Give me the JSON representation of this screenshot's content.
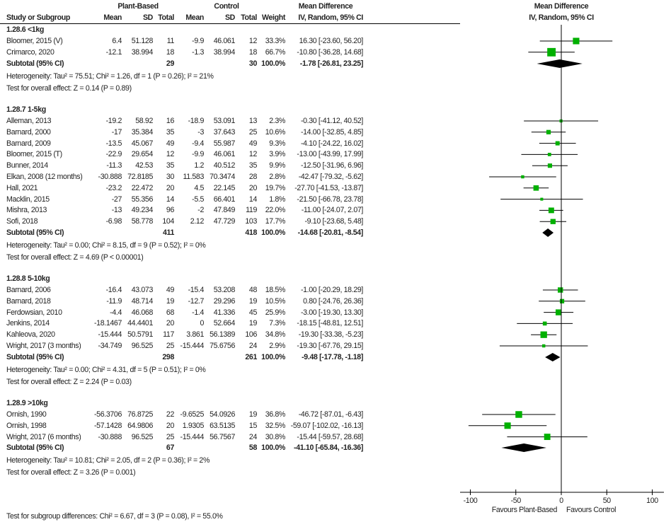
{
  "chart_data": {
    "type": "forest",
    "headers": {
      "study": "Study or Subgroup",
      "group1": "Plant-Based",
      "group2": "Control",
      "mean": "Mean",
      "sd": "SD",
      "total": "Total",
      "weight": "Weight",
      "effect_title": "Mean Difference",
      "effect_method": "IV, Random, 95% CI",
      "plot_title": "Mean Difference",
      "plot_method": "IV, Random, 95% CI"
    },
    "xlim": [
      -100,
      100
    ],
    "ticks": [
      "-100",
      "-50",
      "0",
      "50",
      "100"
    ],
    "xlabel_left": "Favours Plant-Based",
    "xlabel_right": "Favours Control",
    "colors": {
      "study_marker": "#00b000",
      "diamond": "#000000",
      "lines": "#000000"
    },
    "groups": [
      {
        "title": "1.28.6 <1kg",
        "studies": [
          {
            "name": "Bloomer, 2015 (V)",
            "pb_mean": "6.4",
            "pb_sd": "51.128",
            "pb_total": "11",
            "c_mean": "-9.9",
            "c_sd": "46.061",
            "c_total": "12",
            "weight": "33.3%",
            "ci": "16.30 [-23.60, 56.20]"
          },
          {
            "name": "Crimarco, 2020",
            "pb_mean": "-12.1",
            "pb_sd": "38.994",
            "pb_total": "18",
            "c_mean": "-1.3",
            "c_sd": "38.994",
            "c_total": "18",
            "weight": "66.7%",
            "ci": "-10.80 [-36.28, 14.68]"
          }
        ],
        "subtotal": {
          "label": "Subtotal (95% CI)",
          "pb_total": "29",
          "c_total": "30",
          "weight": "100.0%",
          "ci": "-1.78 [-26.81, 23.25]"
        },
        "heterogeneity": "Heterogeneity: Tau² = 75.51; Chi² = 1.26, df = 1 (P = 0.26); I² = 21%",
        "overall_effect": "Test for overall effect: Z = 0.14 (P = 0.89)"
      },
      {
        "title": "1.28.7 1-5kg",
        "studies": [
          {
            "name": "Alleman, 2013",
            "pb_mean": "-19.2",
            "pb_sd": "58.92",
            "pb_total": "16",
            "c_mean": "-18.9",
            "c_sd": "53.091",
            "c_total": "13",
            "weight": "2.3%",
            "ci": "-0.30 [-41.12, 40.52]"
          },
          {
            "name": "Barnard, 2000",
            "pb_mean": "-17",
            "pb_sd": "35.384",
            "pb_total": "35",
            "c_mean": "-3",
            "c_sd": "37.643",
            "c_total": "25",
            "weight": "10.6%",
            "ci": "-14.00 [-32.85, 4.85]"
          },
          {
            "name": "Barnard, 2009",
            "pb_mean": "-13.5",
            "pb_sd": "45.067",
            "pb_total": "49",
            "c_mean": "-9.4",
            "c_sd": "55.987",
            "c_total": "49",
            "weight": "9.3%",
            "ci": "-4.10 [-24.22, 16.02]"
          },
          {
            "name": "Bloomer, 2015 (T)",
            "pb_mean": "-22.9",
            "pb_sd": "29.654",
            "pb_total": "12",
            "c_mean": "-9.9",
            "c_sd": "46.061",
            "c_total": "12",
            "weight": "3.9%",
            "ci": "-13.00 [-43.99, 17.99]"
          },
          {
            "name": "Bunner, 2014",
            "pb_mean": "-11.3",
            "pb_sd": "42.53",
            "pb_total": "35",
            "c_mean": "1.2",
            "c_sd": "40.512",
            "c_total": "35",
            "weight": "9.9%",
            "ci": "-12.50 [-31.96, 6.96]"
          },
          {
            "name": "Elkan, 2008 (12 months)",
            "pb_mean": "-30.888",
            "pb_sd": "72.8185",
            "pb_total": "30",
            "c_mean": "11.583",
            "c_sd": "70.3474",
            "c_total": "28",
            "weight": "2.8%",
            "ci": "-42.47 [-79.32, -5.62]"
          },
          {
            "name": "Hall, 2021",
            "pb_mean": "-23.2",
            "pb_sd": "22.472",
            "pb_total": "20",
            "c_mean": "4.5",
            "c_sd": "22.145",
            "c_total": "20",
            "weight": "19.7%",
            "ci": "-27.70 [-41.53, -13.87]"
          },
          {
            "name": "Macklin, 2015",
            "pb_mean": "-27",
            "pb_sd": "55.356",
            "pb_total": "14",
            "c_mean": "-5.5",
            "c_sd": "66.401",
            "c_total": "14",
            "weight": "1.8%",
            "ci": "-21.50 [-66.78, 23.78]"
          },
          {
            "name": "Mishra, 2013",
            "pb_mean": "-13",
            "pb_sd": "49.234",
            "pb_total": "96",
            "c_mean": "-2",
            "c_sd": "47.849",
            "c_total": "119",
            "weight": "22.0%",
            "ci": "-11.00 [-24.07, 2.07]"
          },
          {
            "name": "Sofi, 2018",
            "pb_mean": "-6.98",
            "pb_sd": "58.778",
            "pb_total": "104",
            "c_mean": "2.12",
            "c_sd": "47.729",
            "c_total": "103",
            "weight": "17.7%",
            "ci": "-9.10 [-23.68, 5.48]"
          }
        ],
        "subtotal": {
          "label": "Subtotal (95% CI)",
          "pb_total": "411",
          "c_total": "418",
          "weight": "100.0%",
          "ci": "-14.68 [-20.81, -8.54]"
        },
        "heterogeneity": "Heterogeneity: Tau² = 0.00; Chi² = 8.15, df = 9 (P = 0.52); I² = 0%",
        "overall_effect": "Test for overall effect: Z = 4.69 (P < 0.00001)"
      },
      {
        "title": "1.28.8 5-10kg",
        "studies": [
          {
            "name": "Barnard, 2006",
            "pb_mean": "-16.4",
            "pb_sd": "43.073",
            "pb_total": "49",
            "c_mean": "-15.4",
            "c_sd": "53.208",
            "c_total": "48",
            "weight": "18.5%",
            "ci": "-1.00 [-20.29, 18.29]"
          },
          {
            "name": "Barnard, 2018",
            "pb_mean": "-11.9",
            "pb_sd": "48.714",
            "pb_total": "19",
            "c_mean": "-12.7",
            "c_sd": "29.296",
            "c_total": "19",
            "weight": "10.5%",
            "ci": "0.80 [-24.76, 26.36]"
          },
          {
            "name": "Ferdowsian, 2010",
            "pb_mean": "-4.4",
            "pb_sd": "46.068",
            "pb_total": "68",
            "c_mean": "-1.4",
            "c_sd": "41.336",
            "c_total": "45",
            "weight": "25.9%",
            "ci": "-3.00 [-19.30, 13.30]"
          },
          {
            "name": "Jenkins, 2014",
            "pb_mean": "-18.1467",
            "pb_sd": "44.4401",
            "pb_total": "20",
            "c_mean": "0",
            "c_sd": "52.664",
            "c_total": "19",
            "weight": "7.3%",
            "ci": "-18.15 [-48.81, 12.51]"
          },
          {
            "name": "Kahleova, 2020",
            "pb_mean": "-15.444",
            "pb_sd": "50.5791",
            "pb_total": "117",
            "c_mean": "3.861",
            "c_sd": "56.1389",
            "c_total": "106",
            "weight": "34.8%",
            "ci": "-19.30 [-33.38, -5.23]"
          },
          {
            "name": "Wright, 2017 (3 months)",
            "pb_mean": "-34.749",
            "pb_sd": "96.525",
            "pb_total": "25",
            "c_mean": "-15.444",
            "c_sd": "75.6756",
            "c_total": "24",
            "weight": "2.9%",
            "ci": "-19.30 [-67.76, 29.15]"
          }
        ],
        "subtotal": {
          "label": "Subtotal (95% CI)",
          "pb_total": "298",
          "c_total": "261",
          "weight": "100.0%",
          "ci": "-9.48 [-17.78, -1.18]"
        },
        "heterogeneity": "Heterogeneity: Tau² = 0.00; Chi² = 4.31, df = 5 (P = 0.51); I² = 0%",
        "overall_effect": "Test for overall effect: Z = 2.24 (P = 0.03)"
      },
      {
        "title": "1.28.9 >10kg",
        "studies": [
          {
            "name": "Ornish, 1990",
            "pb_mean": "-56.3706",
            "pb_sd": "76.8725",
            "pb_total": "22",
            "c_mean": "-9.6525",
            "c_sd": "54.0926",
            "c_total": "19",
            "weight": "36.8%",
            "ci": "-46.72 [-87.01, -6.43]"
          },
          {
            "name": "Ornish, 1998",
            "pb_mean": "-57.1428",
            "pb_sd": "64.9806",
            "pb_total": "20",
            "c_mean": "1.9305",
            "c_sd": "63.5135",
            "c_total": "15",
            "weight": "32.5%",
            "ci": "-59.07 [-102.02, -16.13]"
          },
          {
            "name": "Wright, 2017 (6 months)",
            "pb_mean": "-30.888",
            "pb_sd": "96.525",
            "pb_total": "25",
            "c_mean": "-15.444",
            "c_sd": "56.7567",
            "c_total": "24",
            "weight": "30.8%",
            "ci": "-15.44 [-59.57, 28.68]"
          }
        ],
        "subtotal": {
          "label": "Subtotal (95% CI)",
          "pb_total": "67",
          "c_total": "58",
          "weight": "100.0%",
          "ci": "-41.10 [-65.84, -16.36]"
        },
        "heterogeneity": "Heterogeneity: Tau² = 10.81; Chi² = 2.05, df = 2 (P = 0.36); I² = 2%",
        "overall_effect": "Test for overall effect: Z = 3.26 (P = 0.001)"
      }
    ],
    "subgroup_test": "Test for subgroup differences: Chi² = 6.67, df = 3 (P = 0.08), I² = 55.0%"
  }
}
